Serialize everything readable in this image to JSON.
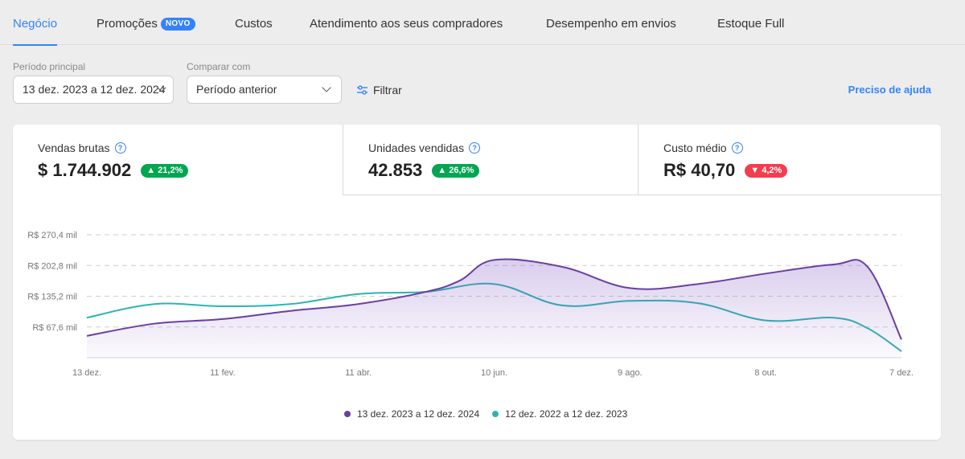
{
  "tabs": [
    {
      "label": "Negócio",
      "active": true
    },
    {
      "label": "Promoções",
      "badge": "NOVO"
    },
    {
      "label": "Custos"
    },
    {
      "label": "Atendimento aos seus compradores"
    },
    {
      "label": "Desempenho em envios"
    },
    {
      "label": "Estoque Full"
    }
  ],
  "filters": {
    "main_period_label": "Período principal",
    "main_period_value": "13 dez. 2023 a 12 dez. 2024",
    "compare_label": "Comparar com",
    "compare_value": "Período anterior",
    "filter_label": "Filtrar",
    "help_label": "Preciso de ajuda"
  },
  "kpis": [
    {
      "title": "Vendas brutas",
      "value": "$ 1.744.902",
      "delta": "21,2%",
      "direction": "up"
    },
    {
      "title": "Unidades vendidas",
      "value": "42.853",
      "delta": "26,6%",
      "direction": "up"
    },
    {
      "title": "Custo médio",
      "value": "R$ 40,70",
      "delta": "4,2%",
      "direction": "down"
    }
  ],
  "colors": {
    "accent": "#3483fa",
    "up": "#00a650",
    "down": "#f23d4f",
    "series_main": "#6b3fa0",
    "series_compare": "#2bb5b0"
  },
  "chart_data": {
    "type": "line",
    "y_tick_labels": [
      "R$ 67,6 mil",
      "R$ 135,2 mil",
      "R$ 202,8 mil",
      "R$ 270,4 mil"
    ],
    "y_ticks": [
      67.6,
      135.2,
      202.8,
      270.4
    ],
    "ylim": [
      0,
      270.4
    ],
    "x_tick_labels": [
      "13 dez.",
      "11 fev.",
      "11 abr.",
      "10 jun.",
      "9 ago.",
      "8 out.",
      "7 dez."
    ],
    "x_ticks": [
      0,
      60,
      120,
      180,
      240,
      300,
      360
    ],
    "xlim": [
      0,
      360
    ],
    "grid": true,
    "legend_position": "bottom",
    "series": [
      {
        "name": "13 dez. 2023 a 12 dez. 2024",
        "fill": true,
        "x": [
          0,
          30,
          60,
          90,
          120,
          150,
          165,
          180,
          210,
          240,
          270,
          300,
          330,
          345,
          360
        ],
        "y": [
          48,
          75,
          85,
          103,
          118,
          145,
          170,
          215,
          200,
          153,
          162,
          185,
          205,
          200,
          40
        ]
      },
      {
        "name": "12 dez. 2022 a 12 dez. 2023",
        "fill": false,
        "x": [
          0,
          30,
          60,
          90,
          120,
          150,
          180,
          210,
          240,
          270,
          300,
          330,
          345,
          360
        ],
        "y": [
          88,
          118,
          113,
          118,
          140,
          145,
          162,
          115,
          125,
          120,
          82,
          88,
          65,
          14
        ]
      }
    ]
  }
}
